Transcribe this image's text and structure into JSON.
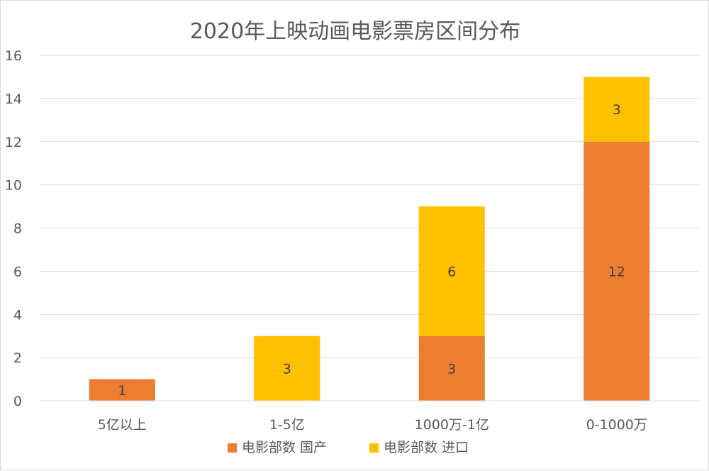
{
  "chart_data": {
    "type": "bar",
    "stacked": true,
    "title": "2020年上映动画电影票房区间分布",
    "categories": [
      "5亿以上",
      "1-5亿",
      "1000万-1亿",
      "0-1000万"
    ],
    "series": [
      {
        "name": "电影部数 国产",
        "values": [
          1,
          0,
          3,
          12
        ],
        "color": "#ED7D31"
      },
      {
        "name": "电影部数 进口",
        "values": [
          0,
          3,
          6,
          3
        ],
        "color": "#FFC000"
      }
    ],
    "ylim": [
      0,
      16
    ],
    "yticks": [
      0,
      2,
      4,
      6,
      8,
      10,
      12,
      14,
      16
    ],
    "grid": true,
    "legend_position": "bottom",
    "data_labels": true
  }
}
